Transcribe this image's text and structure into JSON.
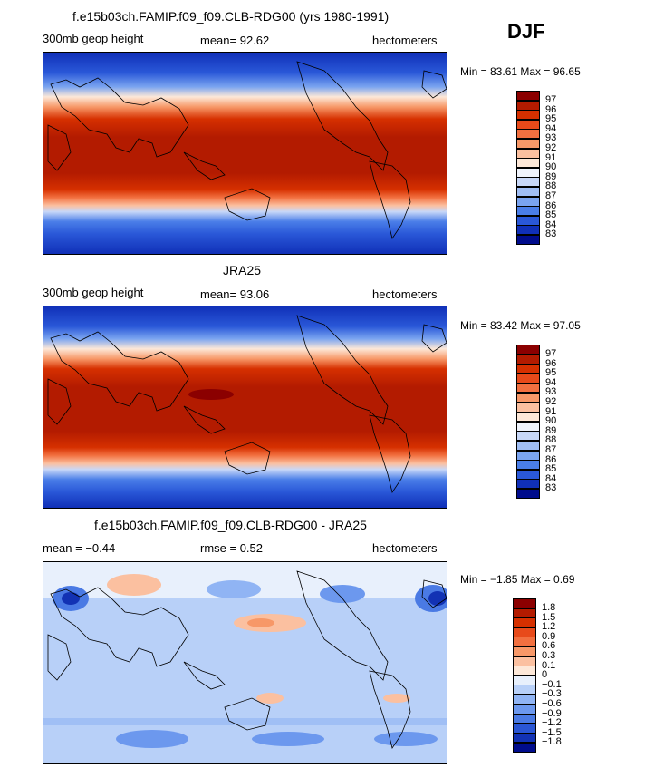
{
  "season": "DJF",
  "panels": [
    {
      "title": "f.e15b03ch.FAMIP.f09_f09.CLB-RDG00 (yrs 1980-1991)",
      "left_label": "300mb geop height",
      "center_label": "mean=  92.62",
      "units": "hectometers",
      "minmax": "Min =   83.61  Max =   96.65",
      "colorbar": {
        "labels": [
          "97",
          "96",
          "95",
          "94",
          "93",
          "92",
          "91",
          "90",
          "89",
          "88",
          "87",
          "86",
          "85",
          "84",
          "83"
        ],
        "colors": [
          "#8b0000",
          "#b31b00",
          "#d63000",
          "#e84a1a",
          "#f27040",
          "#f79868",
          "#fbc0a0",
          "#fde8d8",
          "#f0f4fc",
          "#c8d8f8",
          "#a0bef4",
          "#7aa4f0",
          "#4a7ee8",
          "#2a58d8",
          "#1030b8",
          "#000c8c"
        ]
      }
    },
    {
      "title": "JRA25",
      "left_label": "300mb geop height",
      "center_label": "mean=  93.06",
      "units": "hectometers",
      "minmax": "Min =   83.42  Max =   97.05",
      "colorbar": {
        "labels": [
          "97",
          "96",
          "95",
          "94",
          "93",
          "92",
          "91",
          "90",
          "89",
          "88",
          "87",
          "86",
          "85",
          "84",
          "83"
        ],
        "colors": [
          "#8b0000",
          "#b31b00",
          "#d63000",
          "#e84a1a",
          "#f27040",
          "#f79868",
          "#fbc0a0",
          "#fde8d8",
          "#f0f4fc",
          "#c8d8f8",
          "#a0bef4",
          "#7aa4f0",
          "#4a7ee8",
          "#2a58d8",
          "#1030b8",
          "#000c8c"
        ]
      }
    },
    {
      "title": "f.e15b03ch.FAMIP.f09_f09.CLB-RDG00 - JRA25",
      "left_label": "mean =   −0.44",
      "center_label": "rmse =     0.52",
      "units": "hectometers",
      "minmax": "Min =   −1.85  Max =     0.69",
      "colorbar": {
        "labels": [
          "1.8",
          "1.5",
          "1.2",
          "0.9",
          "0.6",
          "0.3",
          "0.1",
          "0",
          "−0.1",
          "−0.3",
          "−0.6",
          "−0.9",
          "−1.2",
          "−1.5",
          "−1.8"
        ],
        "colors": [
          "#8b0000",
          "#b31b00",
          "#d63000",
          "#e84a1a",
          "#f27040",
          "#f79868",
          "#fbc0a0",
          "#fde8d8",
          "#e8f0fc",
          "#b8d0f8",
          "#90b4f4",
          "#6c98ee",
          "#4a7ae4",
          "#2a56d4",
          "#1232b4",
          "#000c8c"
        ]
      }
    }
  ]
}
